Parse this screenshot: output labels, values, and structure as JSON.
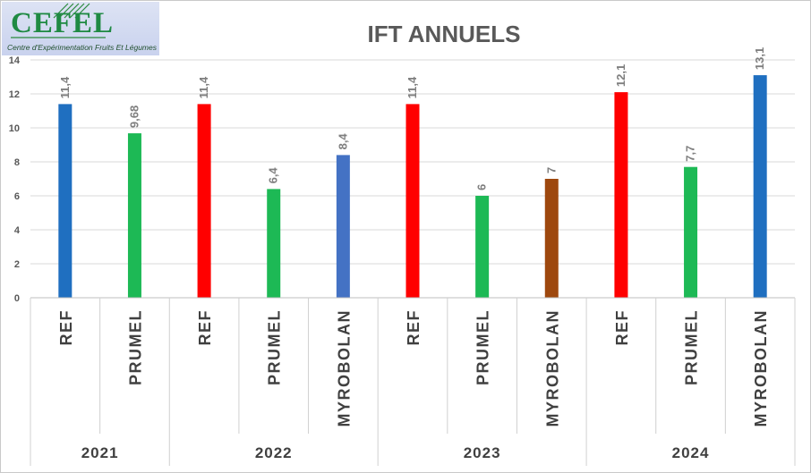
{
  "logo": {
    "name": "CEFEL",
    "subtitle": "Centre d'Expérimentation Fruits Et Légumes"
  },
  "chart_data": {
    "type": "bar",
    "title": "IFT ANNUELS",
    "xlabel": "",
    "ylabel": "",
    "ylim": [
      0,
      14
    ],
    "yticks": [
      0,
      2,
      4,
      6,
      8,
      10,
      12,
      14
    ],
    "grid": true,
    "bars": [
      {
        "group": "2021",
        "label": "REF",
        "value": 11.4,
        "value_label": "11,4",
        "color": "#1f6fc0"
      },
      {
        "group": "2021",
        "label": "PRUMEL",
        "value": 9.68,
        "value_label": "9,68",
        "color": "#1db955"
      },
      {
        "group": "2022",
        "label": "REF",
        "value": 11.4,
        "value_label": "11,4",
        "color": "#ff0000"
      },
      {
        "group": "2022",
        "label": "PRUMEL",
        "value": 6.4,
        "value_label": "6,4",
        "color": "#1db955"
      },
      {
        "group": "2022",
        "label": "MYROBOLAN",
        "value": 8.4,
        "value_label": "8,4",
        "color": "#4472c4"
      },
      {
        "group": "2023",
        "label": "REF",
        "value": 11.4,
        "value_label": "11,4",
        "color": "#ff0000"
      },
      {
        "group": "2023",
        "label": "PRUMEL",
        "value": 6,
        "value_label": "6",
        "color": "#1db955"
      },
      {
        "group": "2023",
        "label": "MYROBOLAN",
        "value": 7,
        "value_label": "7",
        "color": "#9e480e"
      },
      {
        "group": "2024",
        "label": "REF",
        "value": 12.1,
        "value_label": "12,1",
        "color": "#ff0000"
      },
      {
        "group": "2024",
        "label": "PRUMEL",
        "value": 7.7,
        "value_label": "7,7",
        "color": "#1db955"
      },
      {
        "group": "2024",
        "label": "MYROBOLAN",
        "value": 13.1,
        "value_label": "13,1",
        "color": "#1f6fc0"
      }
    ],
    "groups": [
      "2021",
      "2022",
      "2023",
      "2024"
    ]
  }
}
